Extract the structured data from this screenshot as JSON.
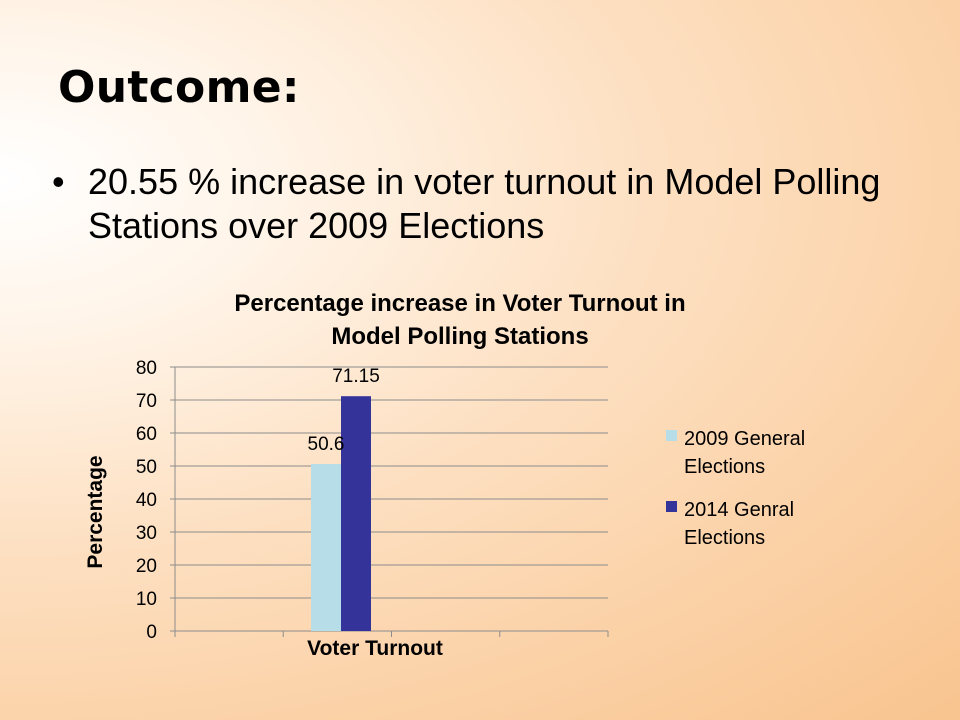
{
  "slide": {
    "title": "Outcome:",
    "bullet_text": "20.55 % increase in voter turnout in Model Polling Stations over 2009 Elections"
  },
  "chart_data": {
    "type": "bar",
    "title_lines": [
      "Percentage increase in Voter Turnout in",
      "Model Polling Stations"
    ],
    "xlabel": "Voter Turnout",
    "ylabel": "Percentage",
    "categories": [
      "Voter Turnout"
    ],
    "ylim": [
      0,
      80
    ],
    "yticks": [
      0,
      10,
      20,
      30,
      40,
      50,
      60,
      70,
      80
    ],
    "grid": true,
    "legend_position": "right",
    "series": [
      {
        "name_lines": [
          "2009 General",
          "Elections"
        ],
        "values": [
          50.6
        ],
        "data_labels": [
          "50.6"
        ],
        "color": "#b7dde8"
      },
      {
        "name_lines": [
          "2014 Genral",
          "Elections"
        ],
        "values": [
          71.15
        ],
        "data_labels": [
          "71.15"
        ],
        "color": "#333399"
      }
    ]
  }
}
